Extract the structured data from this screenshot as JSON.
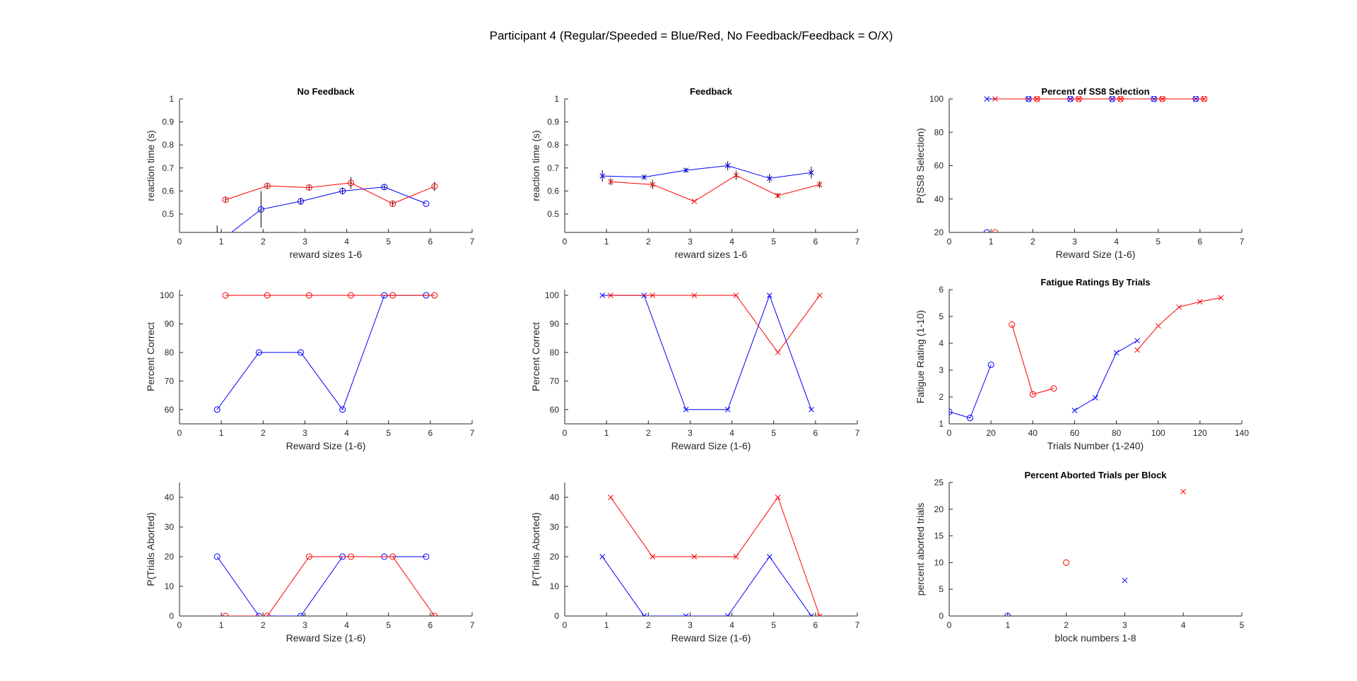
{
  "figure": {
    "title": "Participant 4 (Regular/Speeded = Blue/Red, No Feedback/Feedback = O/X)"
  },
  "colors": {
    "regular": "#0000ff",
    "speeded": "#ff0000",
    "errorbar": "#000000",
    "axis": "#262626"
  },
  "chart_data": [
    {
      "id": "rt-no-feedback",
      "type": "line",
      "title": "No Feedback",
      "xlabel": "reward sizes 1-6",
      "ylabel": "reaction time (s)",
      "xlim": [
        0,
        7
      ],
      "ylim": [
        0.42,
        1
      ],
      "xticks": [
        0,
        1,
        2,
        3,
        4,
        5,
        6,
        7
      ],
      "yticks": [
        0.5,
        0.6,
        0.7,
        0.8,
        0.9,
        1
      ],
      "ytick_labels": [
        "0.5",
        "0.6",
        "0.7",
        "0.8",
        "0.9",
        "1"
      ],
      "series": [
        {
          "color": "blue",
          "marker": "o",
          "x": [
            1.1,
            1.95,
            2.9,
            3.9,
            4.9,
            5.9
          ],
          "y": [
            0.4,
            0.52,
            0.555,
            0.6,
            0.617,
            0.545
          ],
          "err": [
            0,
            0.08,
            0.015,
            0.015,
            0.01,
            0
          ]
        },
        {
          "color": "red",
          "marker": "o",
          "x": [
            1.1,
            2.1,
            3.1,
            4.1,
            5.1,
            6.1
          ],
          "y": [
            0.562,
            0.622,
            0.615,
            0.635,
            0.545,
            0.62
          ],
          "err": [
            0.01,
            0.01,
            0.01,
            0.025,
            0.01,
            0.02
          ]
        }
      ],
      "extra_errorbars": [
        {
          "x": 0.9,
          "y": 0.41,
          "err": 0.04
        }
      ]
    },
    {
      "id": "rt-feedback",
      "type": "line",
      "title": "Feedback",
      "xlabel": "reward sizes 1-6",
      "ylabel": "reaction time (s)",
      "xlim": [
        0,
        7
      ],
      "ylim": [
        0.42,
        1
      ],
      "xticks": [
        0,
        1,
        2,
        3,
        4,
        5,
        6,
        7
      ],
      "yticks": [
        0.5,
        0.6,
        0.7,
        0.8,
        0.9,
        1
      ],
      "ytick_labels": [
        "0.5",
        "0.6",
        "0.7",
        "0.8",
        "0.9",
        "1"
      ],
      "series": [
        {
          "color": "blue",
          "marker": "x",
          "x": [
            0.9,
            1.9,
            2.9,
            3.9,
            4.9,
            5.9
          ],
          "y": [
            0.665,
            0.66,
            0.69,
            0.71,
            0.655,
            0.68
          ],
          "err": [
            0.025,
            0.01,
            0.01,
            0.02,
            0.02,
            0.025
          ]
        },
        {
          "color": "red",
          "marker": "x",
          "x": [
            1.1,
            2.1,
            3.1,
            4.1,
            5.1,
            6.1
          ],
          "y": [
            0.64,
            0.628,
            0.555,
            0.668,
            0.58,
            0.628
          ],
          "err": [
            0.015,
            0.02,
            0,
            0.02,
            0.01,
            0.015
          ]
        }
      ]
    },
    {
      "id": "ss8-selection",
      "type": "line",
      "title": "Percent of SS8 Selection",
      "xlabel": "Reward Size (1-6)",
      "ylabel": "P(SS8 Selection)",
      "xlim": [
        0,
        7
      ],
      "ylim": [
        20,
        100
      ],
      "xticks": [
        0,
        1,
        2,
        3,
        4,
        5,
        6,
        7
      ],
      "yticks": [
        20,
        40,
        60,
        80,
        100
      ],
      "ytick_labels": [
        "20",
        "40",
        "60",
        "80",
        "100"
      ],
      "series": [
        {
          "color": "blue",
          "marker": "o",
          "x": [
            0.9,
            1.9,
            2.9,
            3.9,
            4.9,
            5.9
          ],
          "y": [
            20,
            100,
            100,
            100,
            100,
            100
          ],
          "line": false
        },
        {
          "color": "red",
          "marker": "o",
          "x": [
            1.1,
            2.1,
            3.1,
            4.1,
            5.1,
            6.1
          ],
          "y": [
            20,
            100,
            100,
            100,
            100,
            100
          ],
          "line": false
        },
        {
          "color": "blue",
          "marker": "x",
          "x": [
            0.9,
            1.9,
            2.9,
            3.9,
            4.9,
            5.9
          ],
          "y": [
            100,
            100,
            100,
            100,
            100,
            100
          ]
        },
        {
          "color": "red",
          "marker": "x",
          "x": [
            1.1,
            2.1,
            3.1,
            4.1,
            5.1,
            6.1
          ],
          "y": [
            100,
            100,
            100,
            100,
            100,
            100
          ]
        }
      ]
    },
    {
      "id": "pc-no-feedback",
      "type": "line",
      "title": "",
      "xlabel": "Reward Size (1-6)",
      "ylabel": "Percent Correct",
      "xlim": [
        0,
        7
      ],
      "ylim": [
        55,
        102
      ],
      "xticks": [
        0,
        1,
        2,
        3,
        4,
        5,
        6,
        7
      ],
      "yticks": [
        60,
        70,
        80,
        90,
        100
      ],
      "ytick_labels": [
        "60",
        "70",
        "80",
        "90",
        "100"
      ],
      "series": [
        {
          "color": "blue",
          "marker": "o",
          "x": [
            0.9,
            1.9,
            2.9,
            3.9,
            4.9,
            5.9
          ],
          "y": [
            60,
            80,
            80,
            60,
            100,
            100
          ]
        },
        {
          "color": "red",
          "marker": "o",
          "x": [
            1.1,
            2.1,
            3.1,
            4.1,
            5.1,
            6.1
          ],
          "y": [
            100,
            100,
            100,
            100,
            100,
            100
          ]
        }
      ]
    },
    {
      "id": "pc-feedback",
      "type": "line",
      "title": "",
      "xlabel": "Reward Size (1-6)",
      "ylabel": "Percent Correct",
      "xlim": [
        0,
        7
      ],
      "ylim": [
        55,
        102
      ],
      "xticks": [
        0,
        1,
        2,
        3,
        4,
        5,
        6,
        7
      ],
      "yticks": [
        60,
        70,
        80,
        90,
        100
      ],
      "ytick_labels": [
        "60",
        "70",
        "80",
        "90",
        "100"
      ],
      "series": [
        {
          "color": "blue",
          "marker": "x",
          "x": [
            0.9,
            1.9,
            2.9,
            3.9,
            4.9,
            5.9
          ],
          "y": [
            100,
            100,
            60,
            60,
            100,
            60
          ]
        },
        {
          "color": "red",
          "marker": "x",
          "x": [
            1.1,
            2.1,
            3.1,
            4.1,
            5.1,
            6.1
          ],
          "y": [
            100,
            100,
            100,
            100,
            80,
            100
          ]
        }
      ]
    },
    {
      "id": "fatigue-ratings",
      "type": "line",
      "title": "Fatigue Ratings By Trials",
      "xlabel": "Trials Number (1-240)",
      "ylabel": "Fatigue Rating (1-10)",
      "xlim": [
        0,
        140
      ],
      "ylim": [
        1,
        6
      ],
      "xticks": [
        0,
        20,
        40,
        60,
        80,
        100,
        120,
        140
      ],
      "yticks": [
        1,
        2,
        3,
        4,
        5,
        6
      ],
      "ytick_labels": [
        "1",
        "2",
        "3",
        "4",
        "5",
        "6"
      ],
      "series": [
        {
          "color": "blue",
          "marker": "o",
          "x": [
            0,
            10,
            20
          ],
          "y": [
            1.45,
            1.22,
            3.2
          ]
        },
        {
          "color": "red",
          "marker": "o",
          "x": [
            30,
            40,
            50
          ],
          "y": [
            4.7,
            2.1,
            2.32
          ]
        },
        {
          "color": "blue",
          "marker": "x",
          "x": [
            60,
            70,
            80,
            90
          ],
          "y": [
            1.5,
            1.97,
            3.65,
            4.1
          ]
        },
        {
          "color": "red",
          "marker": "x",
          "x": [
            90,
            100,
            110,
            120,
            130
          ],
          "y": [
            3.75,
            4.65,
            5.35,
            5.55,
            5.7
          ]
        }
      ]
    },
    {
      "id": "aborted-no-feedback",
      "type": "line",
      "title": "",
      "xlabel": "Reward Size (1-6)",
      "ylabel": "P(Trials Aborted)",
      "xlim": [
        0,
        7
      ],
      "ylim": [
        0,
        45
      ],
      "xticks": [
        0,
        1,
        2,
        3,
        4,
        5,
        6,
        7
      ],
      "yticks": [
        0,
        10,
        20,
        30,
        40
      ],
      "ytick_labels": [
        "0",
        "10",
        "20",
        "30",
        "40"
      ],
      "series": [
        {
          "color": "blue",
          "marker": "o",
          "x": [
            0.9,
            1.9,
            2.9,
            3.9,
            4.9,
            5.9
          ],
          "y": [
            20,
            0,
            0,
            20,
            20,
            20
          ]
        },
        {
          "color": "red",
          "marker": "o",
          "x": [
            1.1,
            2.1,
            3.1,
            4.1,
            5.1,
            6.1
          ],
          "y": [
            0,
            0,
            20,
            20,
            20,
            0
          ]
        }
      ]
    },
    {
      "id": "aborted-feedback",
      "type": "line",
      "title": "",
      "xlabel": "Reward Size (1-6)",
      "ylabel": "P(Trials Aborted)",
      "xlim": [
        0,
        7
      ],
      "ylim": [
        0,
        45
      ],
      "xticks": [
        0,
        1,
        2,
        3,
        4,
        5,
        6,
        7
      ],
      "yticks": [
        0,
        10,
        20,
        30,
        40
      ],
      "ytick_labels": [
        "0",
        "10",
        "20",
        "30",
        "40"
      ],
      "series": [
        {
          "color": "blue",
          "marker": "x",
          "x": [
            0.9,
            1.9,
            2.9,
            3.9,
            4.9,
            5.9
          ],
          "y": [
            20,
            0,
            0,
            0,
            20,
            0
          ]
        },
        {
          "color": "red",
          "marker": "x",
          "x": [
            1.1,
            2.1,
            3.1,
            4.1,
            5.1,
            6.1
          ],
          "y": [
            40,
            20,
            20,
            20,
            40,
            0
          ]
        }
      ]
    },
    {
      "id": "aborted-per-block",
      "type": "scatter",
      "title": "Percent Aborted Trials per Block",
      "xlabel": "block numbers 1-8",
      "ylabel": "percent aborted trials",
      "xlim": [
        0,
        5
      ],
      "ylim": [
        0,
        25
      ],
      "xticks": [
        0,
        1,
        2,
        3,
        4,
        5
      ],
      "yticks": [
        0,
        5,
        10,
        15,
        20,
        25
      ],
      "ytick_labels": [
        "0",
        "5",
        "10",
        "15",
        "20",
        "25"
      ],
      "series": [
        {
          "color": "blue",
          "marker": "o",
          "x": [
            1
          ],
          "y": [
            0
          ],
          "line": false
        },
        {
          "color": "red",
          "marker": "o",
          "x": [
            2
          ],
          "y": [
            10
          ],
          "line": false
        },
        {
          "color": "blue",
          "marker": "x",
          "x": [
            3
          ],
          "y": [
            6.67
          ],
          "line": false
        },
        {
          "color": "red",
          "marker": "x",
          "x": [
            4
          ],
          "y": [
            23.3
          ],
          "line": false
        }
      ]
    }
  ]
}
